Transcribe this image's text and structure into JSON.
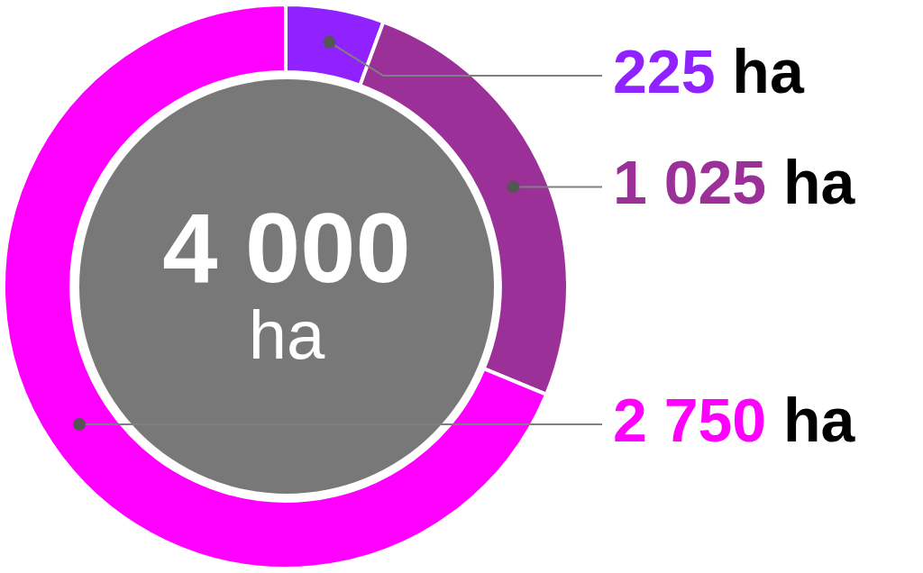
{
  "chart_data": {
    "type": "donut",
    "categories": [
      null,
      null,
      null
    ],
    "values": [
      225,
      1025,
      2750
    ],
    "colors": [
      "#8f22ff",
      "#9b3099",
      "#ff00ff"
    ],
    "value_labels": [
      "225 ha",
      "1 025 ha",
      "2 750 ha"
    ],
    "annotations": [
      "4 000",
      "ha"
    ],
    "legend": false
  }
}
